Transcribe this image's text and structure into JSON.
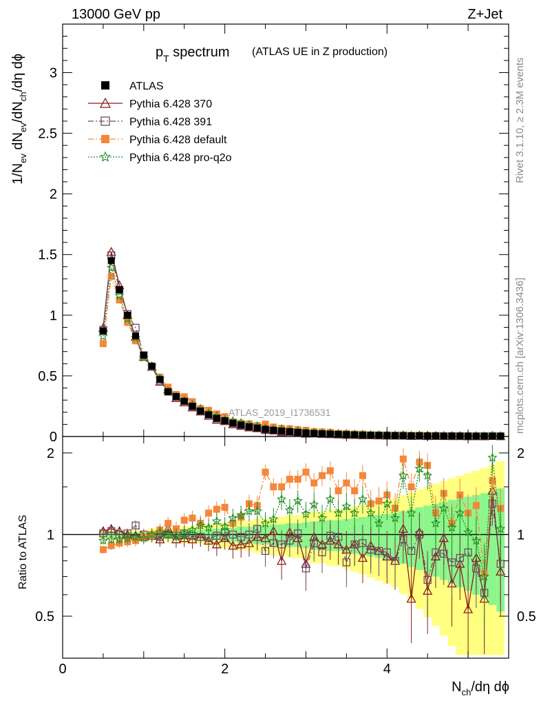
{
  "header": {
    "left": "13000 GeV pp",
    "right": "Z+Jet"
  },
  "title": {
    "main": "p",
    "sub": "T",
    "word": " spectrum",
    "paren": "(ATLAS UE in Z production)"
  },
  "side_labels": {
    "rivet": "Rivet 3.1.10, ≥ 2.3M events",
    "mcplots": "mcplots.cern.ch [arXiv:1306.3436]"
  },
  "watermark": "ATLAS_2019_I1736531",
  "legend": [
    {
      "label": "ATLAS",
      "color": "#000000",
      "marker": "square-filled"
    },
    {
      "label": "Pythia 6.428 370",
      "color": "#8b1a1a",
      "marker": "triangle-open"
    },
    {
      "label": "Pythia 6.428 391",
      "color": "#6b4a5e",
      "marker": "square-open"
    },
    {
      "label": "Pythia 6.428 default",
      "color": "#f5873a",
      "marker": "square-filled"
    },
    {
      "label": "Pythia 6.428 pro-q2o",
      "color": "#1e8c1e",
      "marker": "star"
    }
  ],
  "axes": {
    "y_main_label": "1/N_ev dN_ev/dN_ch/dη dϕ",
    "y_ratio_label": "Ratio to ATLAS",
    "x_label": "N_ch/dη dϕ",
    "y_main_ticks": [
      "0",
      "0.5",
      "1",
      "1.5",
      "2",
      "2.5",
      "3"
    ],
    "y_ratio_ticks": [
      "0.5",
      "1",
      "2"
    ],
    "x_ticks": [
      "0",
      "2",
      "4"
    ]
  },
  "chart_data": {
    "type": "scatter",
    "xlim": [
      0,
      5.5
    ],
    "ylim_main": [
      0,
      3.4
    ],
    "ylim_ratio": [
      0.35,
      2.3
    ],
    "ratio_scale": "log",
    "x": [
      0.5,
      0.6,
      0.7,
      0.8,
      0.9,
      1.0,
      1.1,
      1.2,
      1.3,
      1.4,
      1.5,
      1.6,
      1.7,
      1.8,
      1.9,
      2.0,
      2.1,
      2.2,
      2.3,
      2.4,
      2.5,
      2.6,
      2.7,
      2.8,
      2.9,
      3.0,
      3.1,
      3.2,
      3.3,
      3.4,
      3.5,
      3.6,
      3.7,
      3.8,
      3.9,
      4.0,
      4.1,
      4.2,
      4.3,
      4.4,
      4.5,
      4.6,
      4.7,
      4.8,
      4.9,
      5.0,
      5.1,
      5.2,
      5.3,
      5.4
    ],
    "atlas": [
      0.87,
      1.45,
      1.21,
      1.0,
      0.83,
      0.67,
      0.58,
      0.47,
      0.37,
      0.33,
      0.29,
      0.25,
      0.21,
      0.18,
      0.15,
      0.13,
      0.11,
      0.095,
      0.08,
      0.07,
      0.06,
      0.052,
      0.045,
      0.04,
      0.035,
      0.03,
      0.026,
      0.023,
      0.02,
      0.018,
      0.016,
      0.014,
      0.012,
      0.011,
      0.01,
      0.009,
      0.008,
      0.007,
      0.006,
      0.006,
      0.005,
      0.005,
      0.004,
      0.004,
      0.004,
      0.003,
      0.003,
      0.003,
      0.003,
      0.003
    ],
    "series": [
      {
        "name": "Pythia 6.428 370",
        "ratio": [
          1.03,
          1.05,
          1.03,
          1.0,
          0.99,
          0.98,
          0.99,
          0.96,
          1.05,
          0.96,
          0.97,
          0.96,
          0.98,
          0.95,
          0.92,
          0.97,
          0.91,
          0.92,
          0.93,
          0.98,
          0.97,
          1.03,
          0.8,
          1.02,
          0.97,
          0.78,
          0.98,
          0.92,
          0.95,
          0.92,
          0.88,
          0.92,
          0.82,
          0.91,
          0.87,
          0.83,
          0.8,
          1.05,
          0.58,
          1.02,
          0.62,
          0.83,
          0.97,
          0.66,
          0.78,
          0.53,
          0.82,
          0.58,
          1.45,
          0.73
        ]
      },
      {
        "name": "Pythia 6.428 391",
        "ratio": [
          1.01,
          1.03,
          1.0,
          1.01,
          1.08,
          1.0,
          0.99,
          0.98,
          1.0,
          0.99,
          1.01,
          0.99,
          0.98,
          0.97,
          0.99,
          1.02,
          1.0,
          0.98,
          1.0,
          1.05,
          0.87,
          0.93,
          0.92,
          0.95,
          1.01,
          0.75,
          0.93,
          0.86,
          0.99,
          0.98,
          0.79,
          0.92,
          0.93,
          0.88,
          0.87,
          0.86,
          0.8,
          0.96,
          0.87,
          1.0,
          0.68,
          0.86,
          0.85,
          0.79,
          0.82,
          0.86,
          0.75,
          0.61,
          1.3,
          0.78
        ]
      },
      {
        "name": "Pythia 6.428 default",
        "ratio": [
          0.88,
          0.91,
          0.93,
          0.94,
          0.95,
          0.98,
          1.0,
          1.04,
          1.1,
          1.05,
          1.13,
          1.15,
          1.1,
          1.2,
          1.24,
          1.26,
          1.1,
          1.16,
          1.3,
          1.28,
          1.7,
          1.5,
          1.5,
          1.6,
          1.6,
          1.7,
          1.55,
          1.65,
          1.72,
          1.45,
          1.55,
          1.45,
          1.65,
          1.3,
          1.33,
          1.4,
          1.25,
          1.9,
          1.5,
          1.85,
          1.8,
          1.2,
          1.42,
          1.1,
          1.4,
          1.2,
          1.28,
          0.72,
          1.58,
          1.25
        ]
      },
      {
        "name": "Pythia 6.428 pro-q2o",
        "ratio": [
          0.95,
          0.96,
          0.96,
          0.97,
          0.98,
          0.97,
          1.0,
          1.02,
          1.0,
          0.99,
          1.01,
          1.04,
          1.08,
          1.06,
          1.12,
          1.07,
          1.15,
          1.18,
          1.22,
          1.22,
          1.1,
          1.14,
          1.35,
          1.23,
          1.33,
          1.19,
          1.29,
          1.15,
          1.35,
          1.2,
          1.27,
          1.2,
          1.35,
          1.2,
          1.1,
          1.3,
          1.15,
          1.65,
          1.2,
          1.75,
          1.65,
          1.1,
          1.25,
          1.06,
          1.2,
          1.02,
          0.95,
          0.7,
          1.92,
          1.05
        ]
      }
    ],
    "ratio_band_halfwidth": [
      0.02,
      0.02,
      0.02,
      0.02,
      0.02,
      0.02,
      0.03,
      0.03,
      0.03,
      0.03,
      0.04,
      0.04,
      0.04,
      0.05,
      0.05,
      0.06,
      0.06,
      0.07,
      0.07,
      0.08,
      0.08,
      0.09,
      0.09,
      0.1,
      0.1,
      0.11,
      0.12,
      0.12,
      0.13,
      0.13,
      0.14,
      0.15,
      0.16,
      0.17,
      0.18,
      0.19,
      0.2,
      0.22,
      0.24,
      0.26,
      0.28,
      0.3,
      0.32,
      0.34,
      0.36,
      0.38,
      0.4,
      0.42,
      0.45,
      0.48
    ]
  }
}
